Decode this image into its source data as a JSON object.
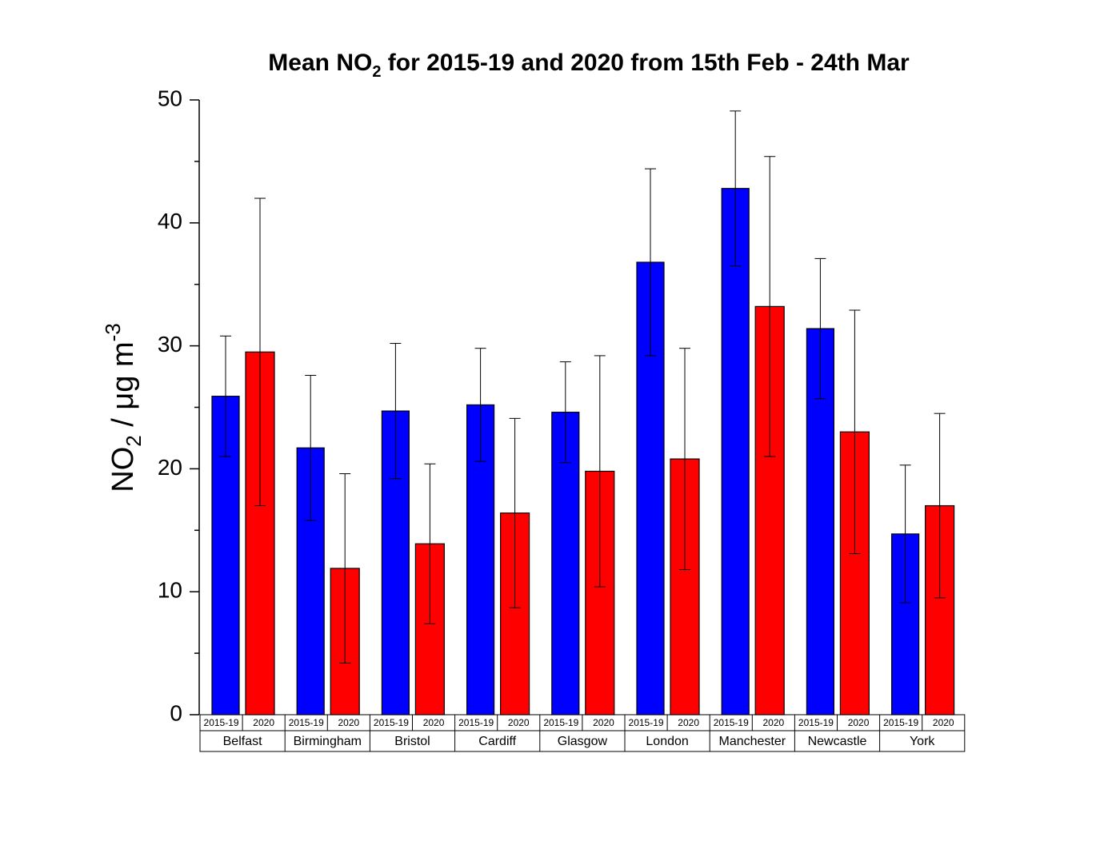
{
  "chart_data": {
    "type": "bar",
    "title": [
      "Mean NO",
      "2",
      " for 2015-19 and 2020 from 15th Feb - 24th Mar"
    ],
    "y_label": [
      "NO",
      "2",
      " / μg m",
      "-3"
    ],
    "categories": [
      "Belfast",
      "Birmingham",
      "Bristol",
      "Cardiff",
      "Glasgow",
      "London",
      "Manchester",
      "Newcastle",
      "York"
    ],
    "series": [
      {
        "name": "2015-19",
        "color": "#0000ff",
        "values": [
          25.9,
          21.7,
          24.7,
          25.2,
          24.6,
          36.8,
          42.8,
          31.4,
          14.7
        ],
        "errors": [
          4.9,
          5.9,
          5.5,
          4.6,
          4.1,
          7.6,
          6.3,
          5.7,
          5.6
        ]
      },
      {
        "name": "2020",
        "color": "#ff0000",
        "values": [
          29.5,
          11.9,
          13.9,
          16.4,
          19.8,
          20.8,
          33.2,
          23.0,
          17.0
        ],
        "errors": [
          12.5,
          7.7,
          6.5,
          7.7,
          9.4,
          9.0,
          12.2,
          9.9,
          7.5
        ]
      }
    ],
    "ylim": [
      0,
      50
    ],
    "yticks": [
      0,
      10,
      20,
      30,
      40,
      50
    ],
    "minor_yticks": [
      5,
      15,
      25,
      35,
      45
    ]
  }
}
